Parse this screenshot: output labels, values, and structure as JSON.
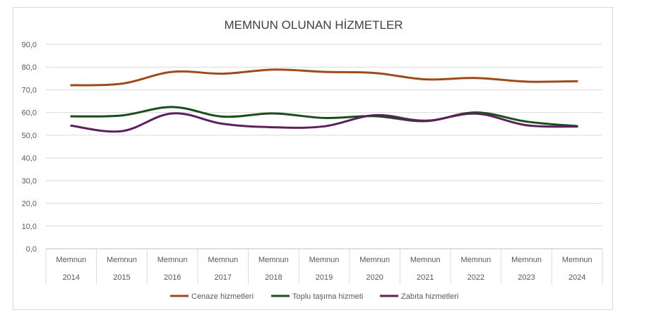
{
  "chart_data": {
    "type": "line",
    "title": "MEMNUN OLUNAN HİZMETLER",
    "xlabel": "",
    "ylabel": "",
    "ylim": [
      0,
      90
    ],
    "yticks": [
      "0,0",
      "10,0",
      "20,0",
      "30,0",
      "40,0",
      "50,0",
      "60,0",
      "70,0",
      "80,0",
      "90,0"
    ],
    "ytick_values": [
      0,
      10,
      20,
      30,
      40,
      50,
      60,
      70,
      80,
      90
    ],
    "grid": true,
    "legend_position": "bottom",
    "categories": [
      {
        "top": "Memnun",
        "bottom": "2014"
      },
      {
        "top": "Memnun",
        "bottom": "2015"
      },
      {
        "top": "Memnun",
        "bottom": "2016"
      },
      {
        "top": "Memnun",
        "bottom": "2017"
      },
      {
        "top": "Memnun",
        "bottom": "2018"
      },
      {
        "top": "Memnun",
        "bottom": "2019"
      },
      {
        "top": "Memnun",
        "bottom": "2020"
      },
      {
        "top": "Memnun",
        "bottom": "2021"
      },
      {
        "top": "Memnun",
        "bottom": "2022"
      },
      {
        "top": "Memnun",
        "bottom": "2023"
      },
      {
        "top": "Memnun",
        "bottom": "2024"
      }
    ],
    "series": [
      {
        "name": "Cenaze hizmetleri",
        "color": "#9E4A1B",
        "values": [
          72.0,
          72.7,
          77.9,
          77.1,
          78.9,
          77.9,
          77.4,
          74.6,
          75.2,
          73.6,
          73.8
        ]
      },
      {
        "name": "Toplu taşıma hizmeti",
        "color": "#1B4D1B",
        "values": [
          58.3,
          58.7,
          62.4,
          58.2,
          59.6,
          57.6,
          58.4,
          56.2,
          60.0,
          56.0,
          54.0
        ]
      },
      {
        "name": "Zabıta hizmetleri",
        "color": "#5E1F5E",
        "values": [
          54.2,
          51.8,
          59.6,
          55.0,
          53.5,
          53.9,
          58.8,
          56.4,
          59.5,
          54.4,
          53.8
        ]
      }
    ]
  }
}
